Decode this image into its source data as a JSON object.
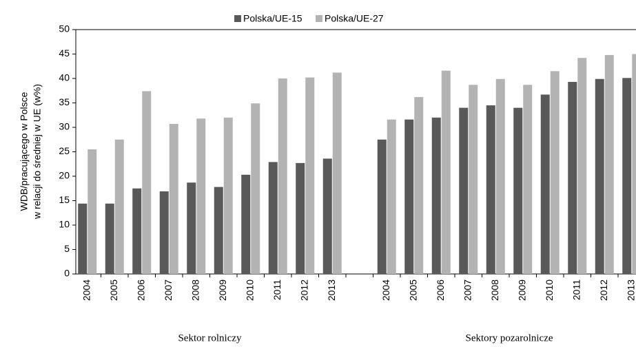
{
  "chart_data": {
    "type": "bar",
    "y_label": [
      "WDB/pracującego w Polsce",
      "w relacji do średniej w UE (w%)"
    ],
    "categories": [
      "2004",
      "2005",
      "2006",
      "2007",
      "2008",
      "2009",
      "2010",
      "2011",
      "2012",
      "2013",
      null,
      "2004",
      "2005",
      "2006",
      "2007",
      "2008",
      "2009",
      "2010",
      "2011",
      "2012",
      "2013"
    ],
    "series": [
      {
        "name": "Polska/UE-15",
        "color": "#595959",
        "values": [
          14.4,
          14.4,
          17.5,
          16.9,
          18.7,
          17.8,
          20.3,
          22.9,
          22.7,
          23.6,
          null,
          27.5,
          31.6,
          32.0,
          34.0,
          34.5,
          34.0,
          36.7,
          39.3,
          39.9,
          40.1
        ]
      },
      {
        "name": "Polska/UE-27",
        "color": "#b3b3b3",
        "values": [
          25.5,
          27.5,
          37.4,
          30.7,
          31.8,
          32.0,
          34.9,
          40.0,
          40.2,
          41.2,
          null,
          31.6,
          36.2,
          41.6,
          38.7,
          39.9,
          38.7,
          41.5,
          44.2,
          44.8,
          45.0
        ]
      }
    ],
    "group_labels": [
      "Sektor rolniczy",
      "Sektory pozarolnicze"
    ],
    "ylim": [
      0,
      50
    ],
    "yticks": [
      0,
      5,
      10,
      15,
      20,
      25,
      30,
      35,
      40,
      45,
      50
    ],
    "grid": false,
    "legend": "top"
  }
}
